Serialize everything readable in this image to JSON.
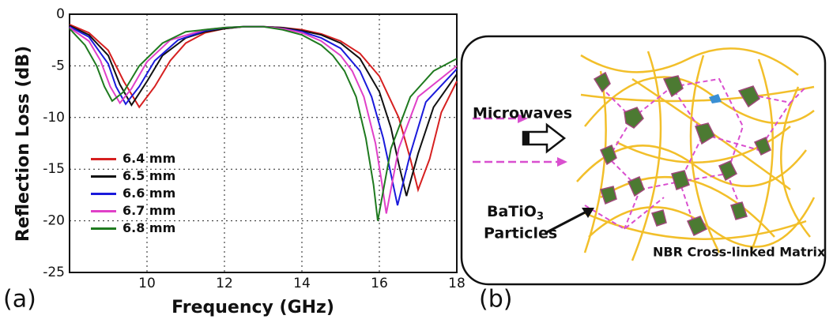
{
  "chart_data": {
    "type": "line",
    "x_label": "Frequency (GHz)",
    "y_label": "Reflection Loss (dB)",
    "panel_label": "(a)",
    "xlim": [
      8,
      18
    ],
    "xticks": [
      10,
      12,
      14,
      16,
      18
    ],
    "ylim": [
      -25,
      0
    ],
    "yticks": [
      0,
      -5,
      -10,
      -15,
      -20,
      -25
    ],
    "grid": true,
    "legend": "center left",
    "series": [
      {
        "name": "6.4 mm",
        "color": "#d62020",
        "x": [
          8,
          8.5,
          9,
          9.4,
          9.8,
          10.2,
          10.6,
          11,
          11.5,
          12,
          12.5,
          13,
          13.5,
          14,
          14.5,
          15,
          15.5,
          16,
          16.5,
          16.8,
          17,
          17.3,
          17.6,
          18
        ],
        "values": [
          -1,
          -1.8,
          -3.5,
          -6.5,
          -9,
          -7,
          -4.5,
          -2.8,
          -1.8,
          -1.4,
          -1.2,
          -1.2,
          -1.3,
          -1.5,
          -1.9,
          -2.6,
          -3.8,
          -6,
          -10,
          -14,
          -17,
          -14,
          -9.5,
          -6.5
        ]
      },
      {
        "name": "6.5 mm",
        "color": "#111111",
        "x": [
          8,
          8.5,
          9,
          9.3,
          9.6,
          10,
          10.4,
          11,
          11.5,
          12,
          12.5,
          13,
          13.5,
          14,
          14.5,
          15,
          15.5,
          16,
          16.3,
          16.5,
          16.7,
          17,
          17.4,
          18
        ],
        "values": [
          -1.1,
          -2,
          -4,
          -6.8,
          -8.8,
          -6.5,
          -4,
          -2.3,
          -1.7,
          -1.4,
          -1.2,
          -1.2,
          -1.3,
          -1.6,
          -2,
          -2.8,
          -4.3,
          -7.5,
          -11,
          -14.5,
          -17.6,
          -13.5,
          -9,
          -5.8
        ]
      },
      {
        "name": "6.6 mm",
        "color": "#1a1adb",
        "x": [
          8,
          8.5,
          9,
          9.2,
          9.45,
          9.8,
          10.2,
          10.8,
          11.5,
          12,
          12.5,
          13,
          13.5,
          14,
          14.5,
          15,
          15.5,
          15.8,
          16.1,
          16.3,
          16.47,
          16.8,
          17.2,
          18
        ],
        "values": [
          -1.2,
          -2.2,
          -4.8,
          -7,
          -8.7,
          -7,
          -4.5,
          -2.5,
          -1.6,
          -1.3,
          -1.2,
          -1.2,
          -1.4,
          -1.7,
          -2.3,
          -3.3,
          -5.5,
          -8,
          -12,
          -15.5,
          -18.5,
          -13.5,
          -8.5,
          -5.3
        ]
      },
      {
        "name": "6.7 mm",
        "color": "#e040c8",
        "x": [
          8,
          8.5,
          8.8,
          9.05,
          9.3,
          9.6,
          10,
          10.6,
          11.5,
          12,
          12.5,
          13,
          13.5,
          14,
          14.5,
          15,
          15.3,
          15.6,
          15.9,
          16.05,
          16.18,
          16.5,
          17,
          18
        ],
        "values": [
          -1.3,
          -2.6,
          -4.5,
          -7,
          -8.6,
          -7.2,
          -4.6,
          -2.5,
          -1.5,
          -1.3,
          -1.2,
          -1.2,
          -1.4,
          -1.8,
          -2.6,
          -4,
          -5.5,
          -8,
          -12.5,
          -16,
          -19.3,
          -13,
          -8,
          -5
        ]
      },
      {
        "name": "6.8 mm",
        "color": "#1f7a1f",
        "x": [
          8,
          8.4,
          8.7,
          8.9,
          9.1,
          9.4,
          9.8,
          10.4,
          11,
          12,
          12.5,
          13,
          13.5,
          14,
          14.5,
          14.8,
          15.1,
          15.4,
          15.65,
          15.85,
          15.96,
          16.3,
          16.8,
          17.4,
          18
        ],
        "values": [
          -1.4,
          -3,
          -5,
          -7,
          -8.4,
          -7.5,
          -5,
          -2.8,
          -1.7,
          -1.3,
          -1.2,
          -1.2,
          -1.5,
          -2,
          -3,
          -4,
          -5.5,
          -8,
          -12,
          -16.5,
          -20,
          -13,
          -8,
          -5.5,
          -4.3
        ]
      }
    ]
  },
  "diagram": {
    "panel_label": "(b)",
    "incoming_label": "Microwaves",
    "particles_label": {
      "formula": "BaTiO",
      "subscript": "3",
      "word": "Particles"
    },
    "matrix_label": "NBR Cross-linked Matrix"
  }
}
